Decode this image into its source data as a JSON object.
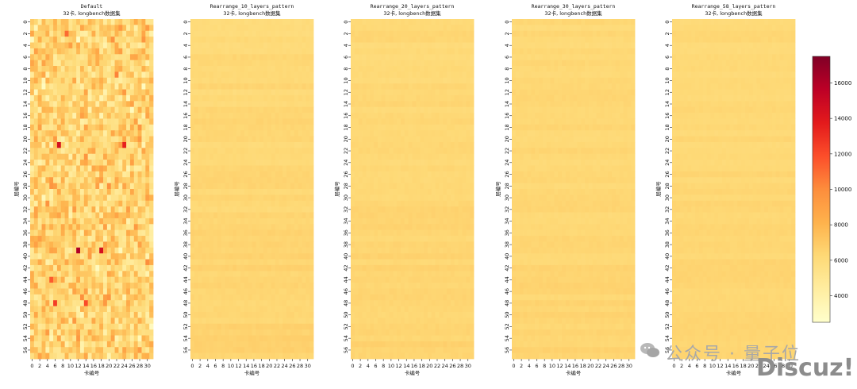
{
  "chart_data": [
    {
      "type": "heatmap",
      "title": "Default",
      "subtitle": "32卡, longbench数据集",
      "xlabel": "卡编号",
      "ylabel": "层编号",
      "n_cols": 32,
      "n_rows": 58,
      "x_ticks": [
        0,
        2,
        4,
        6,
        8,
        10,
        12,
        14,
        16,
        18,
        20,
        22,
        24,
        26,
        28,
        30
      ],
      "y_ticks": [
        0,
        2,
        4,
        6,
        8,
        10,
        12,
        14,
        16,
        18,
        20,
        22,
        24,
        26,
        28,
        30,
        32,
        34,
        36,
        38,
        40,
        42,
        44,
        46,
        48,
        50,
        52,
        54,
        56
      ],
      "value_mean": 6500,
      "value_spread": 3000,
      "hotspots": [
        {
          "row": 21,
          "col": 7,
          "value": 14500
        },
        {
          "row": 21,
          "col": 24,
          "value": 13500
        },
        {
          "row": 39,
          "col": 12,
          "value": 16000
        },
        {
          "row": 39,
          "col": 18,
          "value": 14500
        },
        {
          "row": 48,
          "col": 6,
          "value": 12500
        },
        {
          "row": 48,
          "col": 14,
          "value": 12000
        },
        {
          "row": 2,
          "col": 9,
          "value": 11000
        },
        {
          "row": 44,
          "col": 5,
          "value": 11500
        }
      ]
    },
    {
      "type": "heatmap",
      "title": "Rearrange_10_layers_pattern",
      "subtitle": "32卡, longbench数据集",
      "xlabel": "卡编号",
      "ylabel": "层编号",
      "n_cols": 32,
      "n_rows": 58,
      "x_ticks": [
        0,
        2,
        4,
        6,
        8,
        10,
        12,
        14,
        16,
        18,
        20,
        22,
        24,
        26,
        28,
        30
      ],
      "y_ticks": [
        0,
        2,
        4,
        6,
        8,
        10,
        12,
        14,
        16,
        18,
        20,
        22,
        24,
        26,
        28,
        30,
        32,
        34,
        36,
        38,
        40,
        42,
        44,
        46,
        48,
        50,
        52,
        54,
        56
      ],
      "value_mean": 6200,
      "value_spread": 500,
      "hotspots": []
    },
    {
      "type": "heatmap",
      "title": "Rearrange_20_layers_pattern",
      "subtitle": "32卡, longbench数据集",
      "xlabel": "卡编号",
      "ylabel": "层编号",
      "n_cols": 32,
      "n_rows": 58,
      "x_ticks": [
        0,
        2,
        4,
        6,
        8,
        10,
        12,
        14,
        16,
        18,
        20,
        22,
        24,
        26,
        28,
        30
      ],
      "y_ticks": [
        0,
        2,
        4,
        6,
        8,
        10,
        12,
        14,
        16,
        18,
        20,
        22,
        24,
        26,
        28,
        30,
        32,
        34,
        36,
        38,
        40,
        42,
        44,
        46,
        48,
        50,
        52,
        54,
        56
      ],
      "value_mean": 6200,
      "value_spread": 450,
      "hotspots": []
    },
    {
      "type": "heatmap",
      "title": "Rearrange_30_layers_pattern",
      "subtitle": "32卡, longbench数据集",
      "xlabel": "卡编号",
      "ylabel": "层编号",
      "n_cols": 32,
      "n_rows": 58,
      "x_ticks": [
        0,
        2,
        4,
        6,
        8,
        10,
        12,
        14,
        16,
        18,
        20,
        22,
        24,
        26,
        28,
        30
      ],
      "y_ticks": [
        0,
        2,
        4,
        6,
        8,
        10,
        12,
        14,
        16,
        18,
        20,
        22,
        24,
        26,
        28,
        30,
        32,
        34,
        36,
        38,
        40,
        42,
        44,
        46,
        48,
        50,
        52,
        54,
        56
      ],
      "value_mean": 6200,
      "value_spread": 400,
      "hotspots": []
    },
    {
      "type": "heatmap",
      "title": "Rearrange_58_layers_pattern",
      "subtitle": "32卡, longbench数据集",
      "xlabel": "卡编号",
      "ylabel": "层编号",
      "n_cols": 32,
      "n_rows": 58,
      "x_ticks": [
        0,
        2,
        4,
        6,
        8,
        10,
        12,
        14,
        16,
        18,
        20,
        22,
        24,
        26,
        28,
        30
      ],
      "y_ticks": [
        0,
        2,
        4,
        6,
        8,
        10,
        12,
        14,
        16,
        18,
        20,
        22,
        24,
        26,
        28,
        30,
        32,
        34,
        36,
        38,
        40,
        42,
        44,
        46,
        48,
        50,
        52,
        54,
        56
      ],
      "value_mean": 6200,
      "value_spread": 350,
      "hotspots": []
    }
  ],
  "colorbar": {
    "range": [
      2500,
      17500
    ],
    "ticks": [
      4000,
      6000,
      8000,
      10000,
      12000,
      14000,
      16000
    ],
    "colormap": "YlOrRd",
    "colors": [
      "#ffffcc",
      "#ffeda0",
      "#fed976",
      "#feb24c",
      "#fd8d3c",
      "#fc4e2a",
      "#e31a1c",
      "#bd0026",
      "#800026"
    ]
  },
  "watermark": {
    "label": "公众号 · 量子位",
    "brand": "Discuz!",
    "icon": "wechat-icon"
  }
}
